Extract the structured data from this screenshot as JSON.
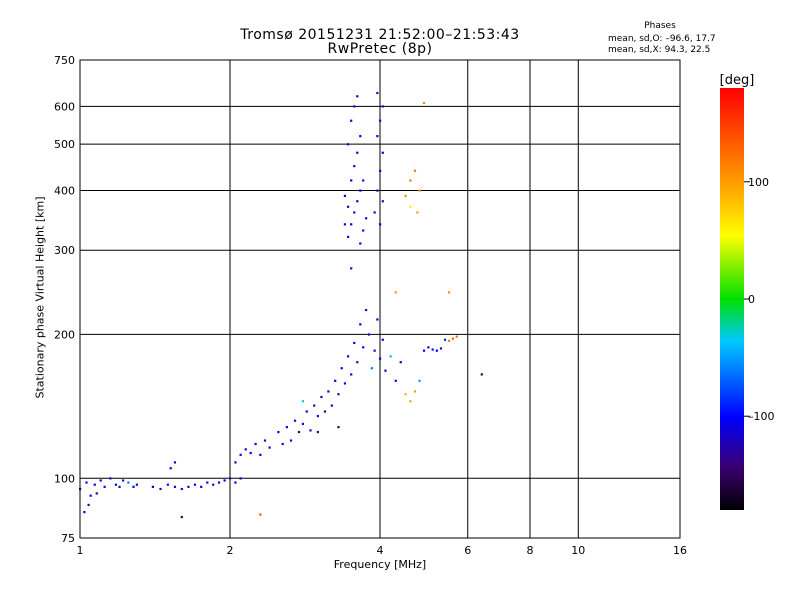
{
  "header": {
    "title_line1": "Tromsø 20151231 21:52:00–21:53:43",
    "title_line2": "RwPretec (8p)"
  },
  "phases_box": {
    "title": "Phases",
    "line_o": "mean, sd,O: –96.6, 17.7",
    "line_x": "mean, sd,X:  94.3, 22.5"
  },
  "colorbar": {
    "label": "[deg]",
    "ticks": [
      {
        "value": 100,
        "label": "100"
      },
      {
        "value": 0,
        "label": "0"
      },
      {
        "value": -100,
        "label": "–100"
      }
    ],
    "range": [
      -180,
      180
    ]
  },
  "chart_data": {
    "type": "scatter",
    "title": "Tromsø 20151231 21:52:00–21:53:43",
    "subtitle": "RwPretec (8p)",
    "xlabel": "Frequency [MHz]",
    "ylabel": "Stationary phase Virtual Height [km]",
    "x_scale": "log",
    "y_scale": "log",
    "xlim": [
      1,
      16
    ],
    "ylim": [
      75,
      750
    ],
    "x_ticks": [
      {
        "value": 1,
        "label": "1"
      },
      {
        "value": 2,
        "label": "2"
      },
      {
        "value": 4,
        "label": "4"
      },
      {
        "value": 6,
        "label": "6"
      },
      {
        "value": 8,
        "label": "8"
      },
      {
        "value": 10,
        "label": "10"
      },
      {
        "value": 16,
        "label": "16"
      }
    ],
    "y_ticks": [
      {
        "value": 75,
        "label": "75"
      },
      {
        "value": 100,
        "label": "100"
      },
      {
        "value": 200,
        "label": "200"
      },
      {
        "value": 300,
        "label": "300"
      },
      {
        "value": 400,
        "label": "400"
      },
      {
        "value": 500,
        "label": "500"
      },
      {
        "value": 600,
        "label": "600"
      },
      {
        "value": 750,
        "label": "750"
      }
    ],
    "x_grid": [
      2,
      4,
      6,
      8,
      10
    ],
    "y_grid": [
      100,
      200,
      300,
      400,
      500,
      600
    ],
    "color_scale": {
      "label": "[deg]",
      "min": -180,
      "max": 180
    },
    "series": [
      {
        "points": [
          [
            1.0,
            95,
            -110
          ],
          [
            1.03,
            98,
            -120
          ],
          [
            1.05,
            92,
            -115
          ],
          [
            1.07,
            97,
            -105
          ],
          [
            1.1,
            99,
            -112
          ],
          [
            1.12,
            96,
            -118
          ],
          [
            1.15,
            100,
            -125
          ],
          [
            1.18,
            97,
            -108
          ],
          [
            1.2,
            96,
            -110
          ],
          [
            1.22,
            99,
            -95
          ],
          [
            1.25,
            98,
            -60
          ],
          [
            1.28,
            96,
            -100
          ],
          [
            1.3,
            97,
            -112
          ],
          [
            1.04,
            88,
            -120
          ],
          [
            1.02,
            85,
            -100
          ],
          [
            1.08,
            93,
            -130
          ]
        ]
      },
      {
        "points": [
          [
            1.4,
            96,
            -115
          ],
          [
            1.45,
            95,
            -120
          ],
          [
            1.5,
            97,
            -108
          ],
          [
            1.55,
            96,
            -125
          ],
          [
            1.6,
            95,
            -110
          ],
          [
            1.65,
            96,
            -118
          ],
          [
            1.7,
            97,
            -105
          ],
          [
            1.75,
            96,
            -112
          ],
          [
            1.8,
            98,
            -120
          ],
          [
            1.85,
            97,
            -115
          ],
          [
            1.9,
            98,
            -108
          ],
          [
            1.95,
            99,
            -110
          ],
          [
            2.0,
            100,
            -115
          ],
          [
            2.05,
            98,
            -122
          ],
          [
            2.1,
            100,
            -105
          ],
          [
            1.52,
            105,
            -110
          ],
          [
            1.55,
            108,
            -120
          ],
          [
            1.6,
            83,
            -150
          ]
        ]
      },
      {
        "points": [
          [
            2.05,
            108,
            -115
          ],
          [
            2.1,
            112,
            -110
          ],
          [
            2.15,
            115,
            -120
          ],
          [
            2.2,
            113,
            -105
          ],
          [
            2.25,
            118,
            -112
          ],
          [
            2.3,
            112,
            -100
          ],
          [
            2.35,
            120,
            -118
          ],
          [
            2.4,
            116,
            -110
          ],
          [
            2.5,
            125,
            -105
          ],
          [
            2.55,
            118,
            -115
          ],
          [
            2.6,
            128,
            -108
          ],
          [
            2.65,
            120,
            -112
          ],
          [
            2.7,
            132,
            -110
          ],
          [
            2.75,
            125,
            -120
          ],
          [
            2.8,
            130,
            -100
          ],
          [
            2.85,
            138,
            -115
          ],
          [
            2.9,
            126,
            -110
          ],
          [
            2.95,
            142,
            -125
          ],
          [
            3.0,
            135,
            -108
          ],
          [
            3.05,
            148,
            -112
          ],
          [
            3.1,
            138,
            -140
          ],
          [
            3.15,
            152,
            -115
          ],
          [
            3.2,
            142,
            -105
          ],
          [
            3.25,
            160,
            -118
          ],
          [
            3.3,
            150,
            -125
          ],
          [
            3.35,
            170,
            -110
          ],
          [
            3.4,
            158,
            -100
          ],
          [
            3.45,
            180,
            -115
          ],
          [
            3.5,
            165,
            -108
          ],
          [
            3.55,
            192,
            -112
          ],
          [
            3.6,
            175,
            -120
          ],
          [
            3.65,
            210,
            -110
          ],
          [
            3.7,
            188,
            -105
          ],
          [
            3.75,
            225,
            -115
          ],
          [
            3.8,
            200,
            -108
          ],
          [
            3.85,
            170,
            -60
          ],
          [
            3.9,
            185,
            -112
          ],
          [
            3.95,
            215,
            -118
          ],
          [
            4.0,
            178,
            -110
          ],
          [
            4.05,
            195,
            -105
          ],
          [
            4.1,
            168,
            -115
          ],
          [
            4.2,
            180,
            -40
          ],
          [
            4.3,
            160,
            -110
          ],
          [
            4.4,
            175,
            -108
          ],
          [
            4.5,
            150,
            90
          ],
          [
            4.6,
            145,
            95
          ],
          [
            4.7,
            152,
            100
          ],
          [
            4.8,
            160,
            -50
          ],
          [
            4.9,
            185,
            -100
          ],
          [
            5.0,
            188,
            -105
          ],
          [
            5.1,
            186,
            -98
          ],
          [
            5.2,
            185,
            -100
          ],
          [
            5.3,
            187,
            -110
          ],
          [
            5.4,
            195,
            -90
          ],
          [
            5.5,
            194,
            120
          ],
          [
            5.6,
            196,
            130
          ],
          [
            5.7,
            198,
            125
          ],
          [
            5.5,
            245,
            110
          ],
          [
            4.3,
            245,
            100
          ],
          [
            3.5,
            275,
            -120
          ],
          [
            6.4,
            165,
            -150
          ],
          [
            3.3,
            128,
            -150
          ],
          [
            3.0,
            125,
            -140
          ],
          [
            2.8,
            145,
            -30
          ],
          [
            2.3,
            84,
            140
          ]
        ]
      },
      {
        "points": [
          [
            3.45,
            320,
            -110
          ],
          [
            3.5,
            340,
            -115
          ],
          [
            3.55,
            360,
            -108
          ],
          [
            3.6,
            380,
            -112
          ],
          [
            3.65,
            400,
            -105
          ],
          [
            3.5,
            420,
            -118
          ],
          [
            3.55,
            450,
            -110
          ],
          [
            3.6,
            480,
            -120
          ],
          [
            3.65,
            520,
            -108
          ],
          [
            3.5,
            560,
            -112
          ],
          [
            3.55,
            600,
            -115
          ],
          [
            3.6,
            630,
            -110
          ],
          [
            3.7,
            330,
            -105
          ],
          [
            3.45,
            370,
            -120
          ],
          [
            3.4,
            390,
            -112
          ],
          [
            3.7,
            420,
            -108
          ],
          [
            3.45,
            500,
            -115
          ],
          [
            3.75,
            350,
            -110
          ],
          [
            3.4,
            340,
            -118
          ],
          [
            3.65,
            310,
            -105
          ],
          [
            3.9,
            360,
            -110
          ],
          [
            3.95,
            400,
            -115
          ],
          [
            4.0,
            440,
            -108
          ],
          [
            4.05,
            480,
            -112
          ],
          [
            3.95,
            520,
            -105
          ],
          [
            4.0,
            560,
            -118
          ],
          [
            4.05,
            600,
            -110
          ],
          [
            3.95,
            640,
            -115
          ],
          [
            4.0,
            340,
            -112
          ],
          [
            4.05,
            380,
            -108
          ],
          [
            4.5,
            390,
            110
          ],
          [
            4.6,
            420,
            120
          ],
          [
            4.7,
            440,
            115
          ],
          [
            4.8,
            400,
            100
          ],
          [
            4.75,
            360,
            95
          ],
          [
            4.6,
            370,
            60
          ],
          [
            4.9,
            610,
            110
          ]
        ]
      }
    ]
  }
}
